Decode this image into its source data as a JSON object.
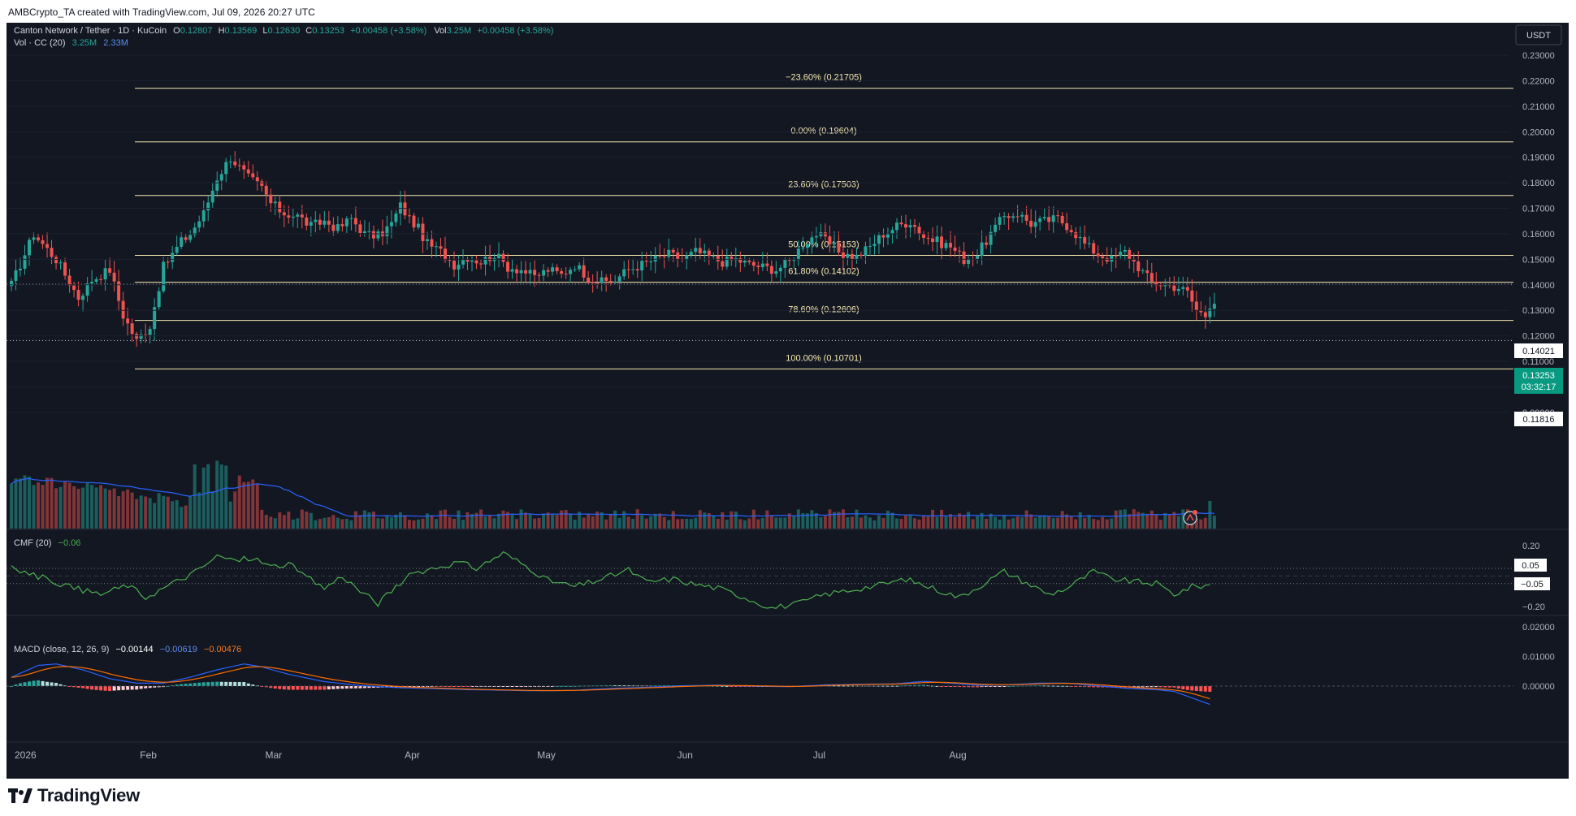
{
  "header": {
    "credit": "AMBCrypto_TA created with TradingView.com, Jul 09, 2026 20:27 UTC"
  },
  "footer": {
    "brand": "TradingView"
  },
  "currency_button": "USDT",
  "legend": {
    "symbol": "Canton Network / Tether · 1D · KuCoin",
    "o_lbl": "O",
    "o": "0.12807",
    "h_lbl": "H",
    "h": "0.13569",
    "l_lbl": "L",
    "l": "0.12630",
    "c_lbl": "C",
    "c": "0.13253",
    "change": "+0.00458 (+3.58%)",
    "vol_lbl": "Vol",
    "vol": "3.25M",
    "vol_change": "+0.00458 (+3.58%)",
    "vol_ind": "Vol · CC (20)",
    "vol_a": "3.25M",
    "vol_b": "2.33M",
    "cmf": "CMF (20)",
    "cmf_val": "−0.06",
    "macd": "MACD (close, 12, 26, 9)",
    "macd_a": "−0.00144",
    "macd_b": "−0.00619",
    "macd_c": "−0.00476"
  },
  "colors": {
    "up": "#26a69a",
    "down": "#ef5350",
    "fib": "#f7e9b0",
    "cmf": "#4caf50",
    "macd": "#2962ff",
    "signal": "#ff6d00",
    "bg": "#131722"
  },
  "price_labels": {
    "last": "0.13253",
    "countdown": "03:32:17",
    "level1": "0.14021",
    "level2": "0.11816"
  },
  "cmf_labels": {
    "top": "0.05",
    "bottom": "−0.05"
  },
  "chart_data": {
    "type": "candlestick",
    "title": "Canton Network / Tether · 1D · KuCoin",
    "y_ticks": [
      "0.23000",
      "0.22000",
      "0.21000",
      "0.20000",
      "0.19000",
      "0.18000",
      "0.17000",
      "0.16000",
      "0.15000",
      "0.14000",
      "0.13000",
      "0.12000",
      "0.11000",
      "0.10000",
      "0.09000"
    ],
    "ylim": [
      0.087,
      0.236
    ],
    "x_ticks": [
      "2026",
      "Feb",
      "Mar",
      "Apr",
      "May",
      "Jun",
      "Jul",
      "Aug"
    ],
    "fib_levels": [
      {
        "label": "−23.60% (0.21705)",
        "price": 0.21705
      },
      {
        "label": "0.00% (0.19604)",
        "price": 0.19604
      },
      {
        "label": "23.60% (0.17503)",
        "price": 0.17503
      },
      {
        "label": "50.00% (0.15153)",
        "price": 0.15153
      },
      {
        "label": "61.80% (0.14102)",
        "price": 0.14102
      },
      {
        "label": "78.60% (0.12606)",
        "price": 0.12606
      },
      {
        "label": "100.00% (0.10701)",
        "price": 0.10701
      }
    ],
    "horizontal_lines": [
      0.14021,
      0.11816
    ],
    "last_close": 0.13253,
    "anchors": [
      [
        0,
        0.14
      ],
      [
        5,
        0.16
      ],
      [
        10,
        0.15
      ],
      [
        15,
        0.135
      ],
      [
        18,
        0.142
      ],
      [
        22,
        0.146
      ],
      [
        25,
        0.128
      ],
      [
        28,
        0.118
      ],
      [
        31,
        0.124
      ],
      [
        34,
        0.147
      ],
      [
        38,
        0.157
      ],
      [
        40,
        0.16
      ],
      [
        43,
        0.168
      ],
      [
        46,
        0.182
      ],
      [
        49,
        0.19
      ],
      [
        51,
        0.186
      ],
      [
        53,
        0.182
      ],
      [
        56,
        0.178
      ],
      [
        58,
        0.172
      ],
      [
        61,
        0.168
      ],
      [
        64,
        0.167
      ],
      [
        67,
        0.163
      ],
      [
        70,
        0.165
      ],
      [
        73,
        0.162
      ],
      [
        76,
        0.166
      ],
      [
        79,
        0.16
      ],
      [
        82,
        0.159
      ],
      [
        85,
        0.164
      ],
      [
        87,
        0.171
      ],
      [
        89,
        0.166
      ],
      [
        91,
        0.162
      ],
      [
        93,
        0.156
      ],
      [
        96,
        0.153
      ],
      [
        99,
        0.148
      ],
      [
        102,
        0.151
      ],
      [
        105,
        0.149
      ],
      [
        108,
        0.152
      ],
      [
        111,
        0.147
      ],
      [
        114,
        0.146
      ],
      [
        117,
        0.143
      ],
      [
        120,
        0.146
      ],
      [
        123,
        0.144
      ],
      [
        126,
        0.148
      ],
      [
        129,
        0.143
      ],
      [
        132,
        0.141
      ],
      [
        135,
        0.142
      ],
      [
        138,
        0.146
      ],
      [
        141,
        0.148
      ],
      [
        144,
        0.15
      ],
      [
        147,
        0.152
      ],
      [
        150,
        0.15
      ],
      [
        153,
        0.153
      ],
      [
        156,
        0.151
      ],
      [
        159,
        0.149
      ],
      [
        162,
        0.15
      ],
      [
        165,
        0.148
      ],
      [
        168,
        0.147
      ],
      [
        171,
        0.146
      ],
      [
        174,
        0.149
      ],
      [
        177,
        0.156
      ],
      [
        180,
        0.16
      ],
      [
        183,
        0.156
      ],
      [
        186,
        0.152
      ],
      [
        189,
        0.151
      ],
      [
        192,
        0.155
      ],
      [
        195,
        0.16
      ],
      [
        198,
        0.163
      ],
      [
        201,
        0.165
      ],
      [
        204,
        0.159
      ],
      [
        207,
        0.157
      ],
      [
        210,
        0.155
      ],
      [
        213,
        0.15
      ],
      [
        216,
        0.152
      ],
      [
        219,
        0.16
      ],
      [
        222,
        0.167
      ],
      [
        225,
        0.168
      ],
      [
        228,
        0.164
      ],
      [
        231,
        0.165
      ],
      [
        234,
        0.166
      ],
      [
        237,
        0.162
      ],
      [
        240,
        0.156
      ],
      [
        243,
        0.152
      ],
      [
        246,
        0.15
      ],
      [
        249,
        0.153
      ],
      [
        252,
        0.147
      ],
      [
        255,
        0.141
      ],
      [
        258,
        0.14
      ],
      [
        261,
        0.139
      ],
      [
        263,
        0.137
      ],
      [
        265,
        0.13
      ],
      [
        267,
        0.128
      ],
      [
        268,
        0.1325
      ]
    ],
    "volume": {
      "label": "Vol · CC (20)",
      "last": "3.25M",
      "ma": "2.33M"
    },
    "cmf": {
      "label": "CMF (20)",
      "last": -0.06,
      "ticks": [
        "0.20",
        "−0.20"
      ],
      "ylim": [
        -0.26,
        0.22
      ],
      "ref_lines": [
        0.05,
        -0.05,
        0
      ]
    },
    "macd": {
      "label": "MACD (close, 12, 26, 9)",
      "hist_last": -0.00144,
      "macd_last": -0.00619,
      "signal_last": -0.00476,
      "ticks": [
        "0.02000",
        "0.01000",
        "0.00000"
      ],
      "ylim": [
        -0.0065,
        0.0205
      ]
    }
  }
}
